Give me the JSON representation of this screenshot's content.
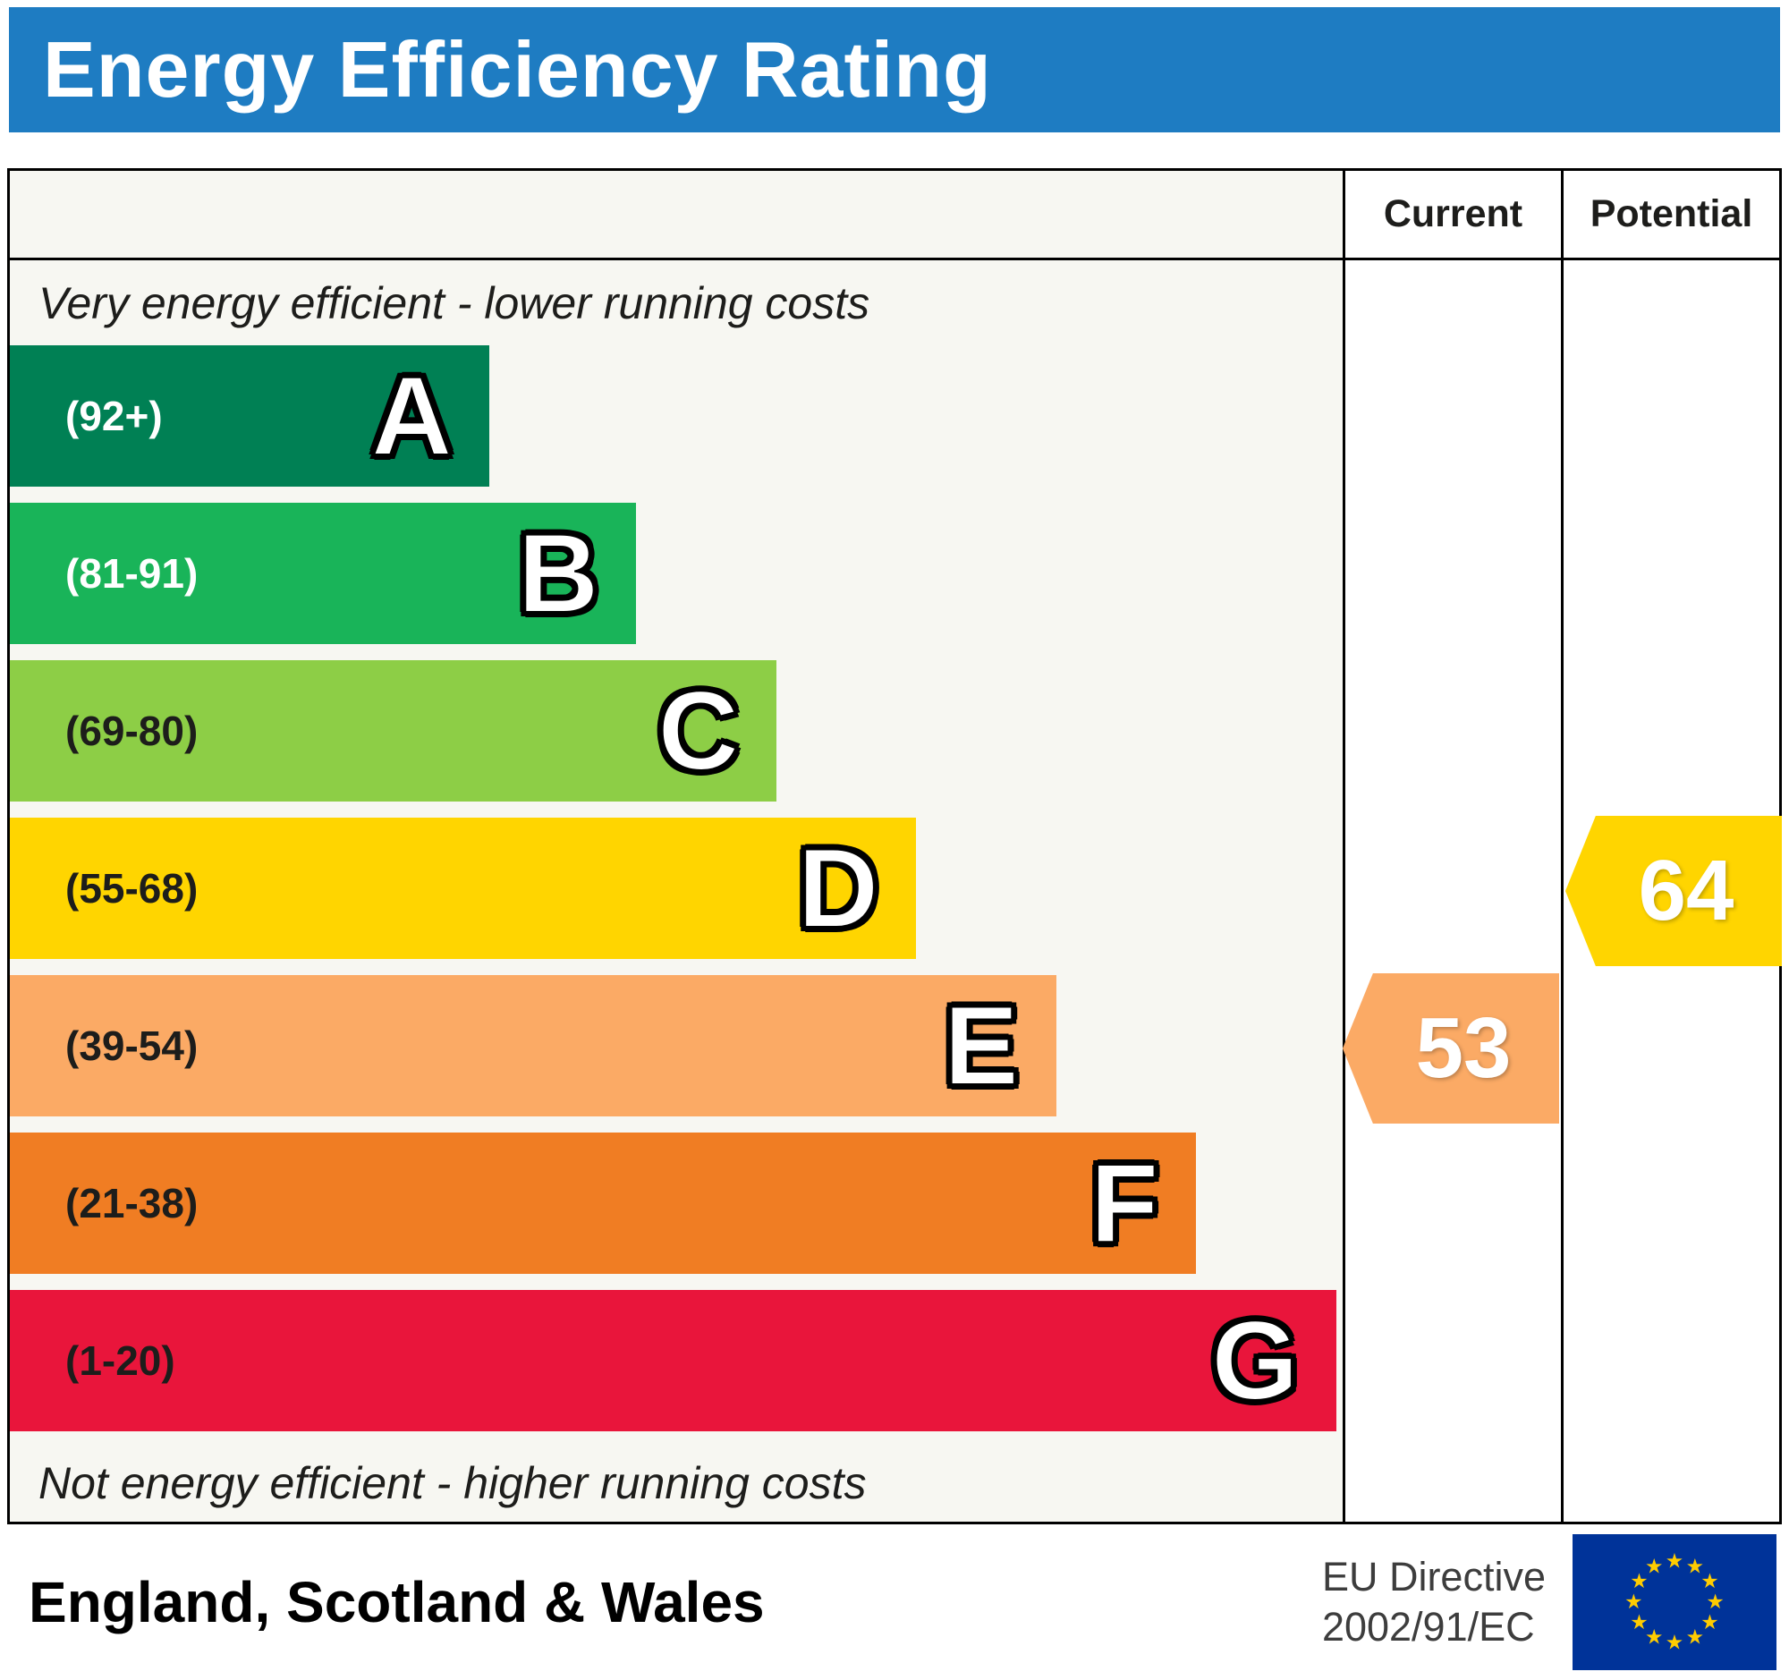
{
  "title": "Energy Efficiency Rating",
  "colors": {
    "title_bg": "#1e7cc2"
  },
  "columns": {
    "current": "Current",
    "potential": "Potential"
  },
  "notes": {
    "top": "Very energy efficient - lower running costs",
    "bottom": "Not energy efficient - higher running costs"
  },
  "bands": [
    {
      "letter": "A",
      "range": "(92+)",
      "color": "#008054",
      "label_color": "#ffffff",
      "width_pct": 36
    },
    {
      "letter": "B",
      "range": "(81-91)",
      "color": "#19b459",
      "label_color": "#ffffff",
      "width_pct": 47
    },
    {
      "letter": "C",
      "range": "(69-80)",
      "color": "#8dce46",
      "label_color": "#1d1d1b",
      "width_pct": 57.5
    },
    {
      "letter": "D",
      "range": "(55-68)",
      "color": "#ffd500",
      "label_color": "#1d1d1b",
      "width_pct": 68
    },
    {
      "letter": "E",
      "range": "(39-54)",
      "color": "#fbaa65",
      "label_color": "#1d1d1b",
      "width_pct": 78.5
    },
    {
      "letter": "F",
      "range": "(21-38)",
      "color": "#f07d23",
      "label_color": "#1d1d1b",
      "width_pct": 89
    },
    {
      "letter": "G",
      "range": "(1-20)",
      "color": "#e9153b",
      "label_color": "#1d1d1b",
      "width_pct": 99.5
    }
  ],
  "current": {
    "value": "53",
    "color": "#fbaa65",
    "band": "E"
  },
  "potential": {
    "value": "64",
    "color": "#ffd500",
    "band": "D"
  },
  "footer": {
    "region": "England, Scotland & Wales",
    "directive": [
      "EU Directive",
      "2002/91/EC"
    ],
    "flag": {
      "background": "#003399",
      "star_color": "#ffcc00",
      "stars": 12
    }
  },
  "chart_data": {
    "type": "bar",
    "title": "Energy Efficiency Rating",
    "categories": [
      "A",
      "B",
      "C",
      "D",
      "E",
      "F",
      "G"
    ],
    "ranges": [
      "92+",
      "81-91",
      "69-80",
      "55-68",
      "39-54",
      "21-38",
      "1-20"
    ],
    "values": [
      36,
      47,
      57.5,
      68,
      78.5,
      89,
      99.5
    ],
    "band_colors": [
      "#008054",
      "#19b459",
      "#8dce46",
      "#ffd500",
      "#fbaa65",
      "#f07d23",
      "#e9153b"
    ],
    "series": [
      {
        "name": "Current",
        "value": 53,
        "band": "E"
      },
      {
        "name": "Potential",
        "value": 64,
        "band": "D"
      }
    ],
    "top_annotation": "Very energy efficient - lower running costs",
    "bottom_annotation": "Not energy efficient - higher running costs",
    "region": "England, Scotland & Wales",
    "directive": "EU Directive 2002/91/EC",
    "legend_position": "none",
    "grid": false
  }
}
